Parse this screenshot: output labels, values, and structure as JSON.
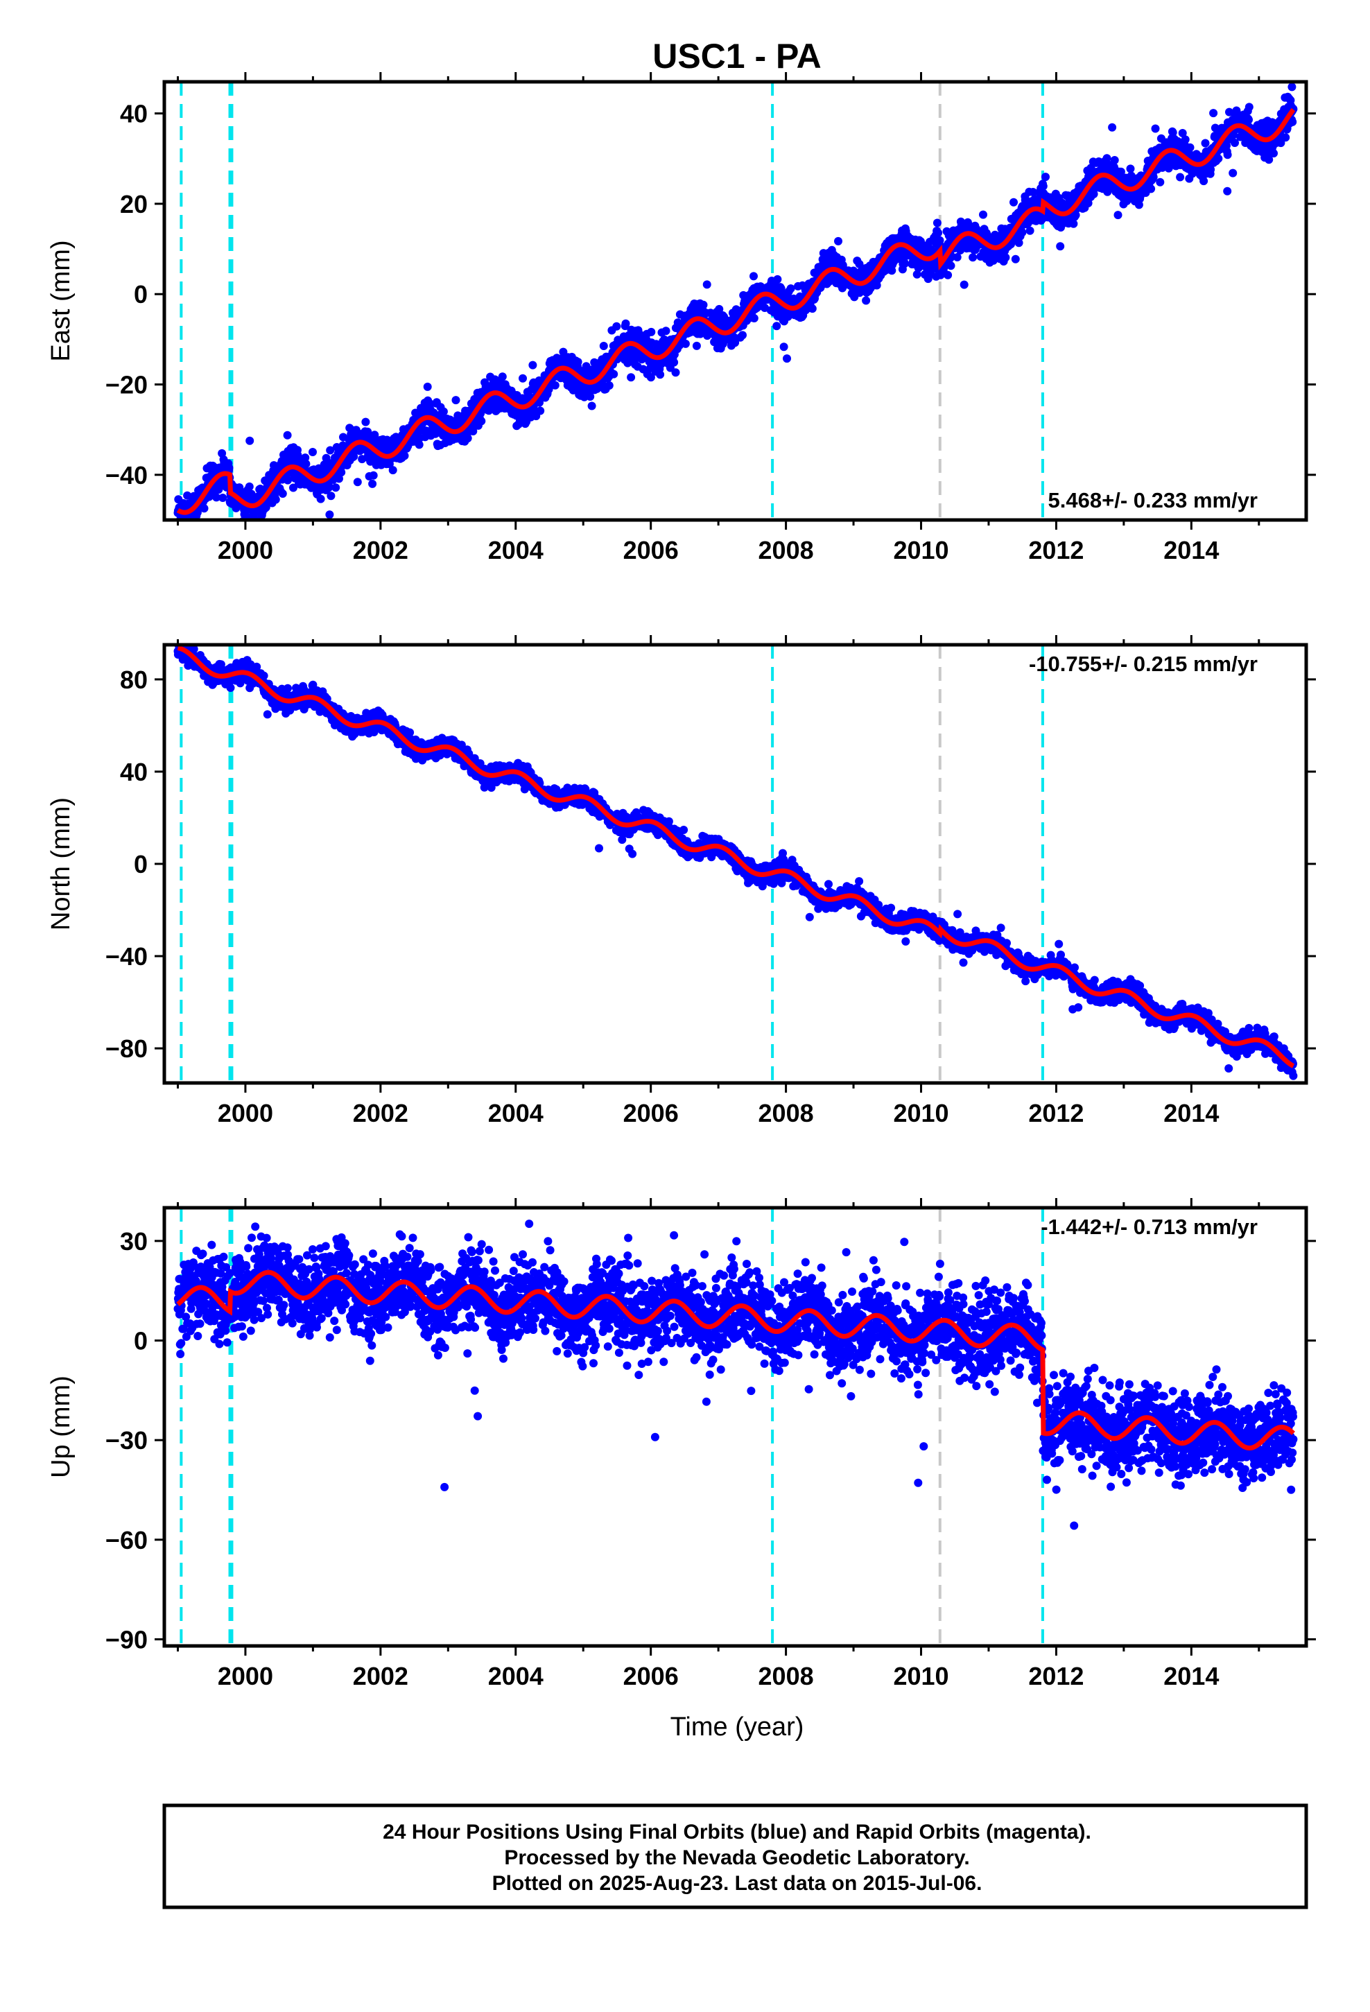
{
  "chart_data": {
    "type": "scatter",
    "title": "USC1 - PA",
    "xlabel": "Time (year)",
    "xlim": [
      1998.8,
      2015.7
    ],
    "xticks": [
      2000,
      2002,
      2004,
      2006,
      2008,
      2010,
      2012,
      2014
    ],
    "markers": {
      "cyan": [
        1999.05,
        1999.8,
        1999.77,
        2007.8,
        2011.8
      ],
      "gray": [
        2010.28
      ]
    },
    "colors": {
      "points": "#0000ff",
      "model": "#ff0000",
      "cyan": "#00e5ee",
      "gray": "#c8c8c8"
    },
    "panels": [
      {
        "name": "east",
        "ylabel": "East (mm)",
        "ylim": [
          -50,
          47
        ],
        "yticks": [
          40,
          20,
          0,
          -20,
          -40
        ],
        "ytick_labels": [
          "40",
          "20",
          "0",
          "−20",
          "−40"
        ],
        "rate_text": "5.468+/- 0.233 mm/yr",
        "rate_position": "bottom-right",
        "model": {
          "rate": 5.468,
          "ref_year": 2008,
          "ref_value": 3,
          "seasonal_amp": 2.8,
          "seasonal_phase": 0.6,
          "steps": [
            {
              "t": 1999.77,
              "d": -4
            },
            {
              "t": 2010.28,
              "d": -3
            },
            {
              "t": 2011.8,
              "d": 2
            }
          ]
        },
        "scatter_sigma": 1.8
      },
      {
        "name": "north",
        "ylabel": "North (mm)",
        "ylim": [
          -95,
          95
        ],
        "yticks": [
          80,
          40,
          0,
          -40,
          -80
        ],
        "ytick_labels": [
          "80",
          "40",
          "0",
          "−40",
          "−80"
        ],
        "rate_text": "-10.755+/- 0.215 mm/yr",
        "rate_position": "top-right",
        "model": {
          "rate": -10.755,
          "ref_year": 2008,
          "ref_value": -6,
          "seasonal_amp": 3.0,
          "seasonal_phase": 0.2,
          "steps": [
            {
              "t": 2010.28,
              "d": 2
            }
          ]
        },
        "scatter_sigma": 2.0
      },
      {
        "name": "up",
        "ylabel": "Up (mm)",
        "ylim": [
          -92,
          40
        ],
        "yticks": [
          30,
          0,
          -30,
          -60,
          -90
        ],
        "ytick_labels": [
          "30",
          "0",
          "−30",
          "−60",
          "−90"
        ],
        "rate_text": "-1.442+/- 0.713 mm/yr",
        "rate_position": "top-right",
        "model": {
          "rate": -1.442,
          "ref_year": 2008,
          "ref_value": 0,
          "seasonal_amp": 3.5,
          "seasonal_phase": 0.9,
          "steps": [
            {
              "t": 1999.77,
              "d": 6
            },
            {
              "t": 2011.8,
              "d": -25
            }
          ]
        },
        "scatter_sigma": 6.0
      }
    ]
  },
  "footer": {
    "line1": "24 Hour Positions Using Final Orbits (blue) and Rapid Orbits (magenta).",
    "line2": "Processed by the Nevada Geodetic Laboratory.",
    "line3": "Plotted on 2025-Aug-23. Last data on 2015-Jul-06."
  }
}
